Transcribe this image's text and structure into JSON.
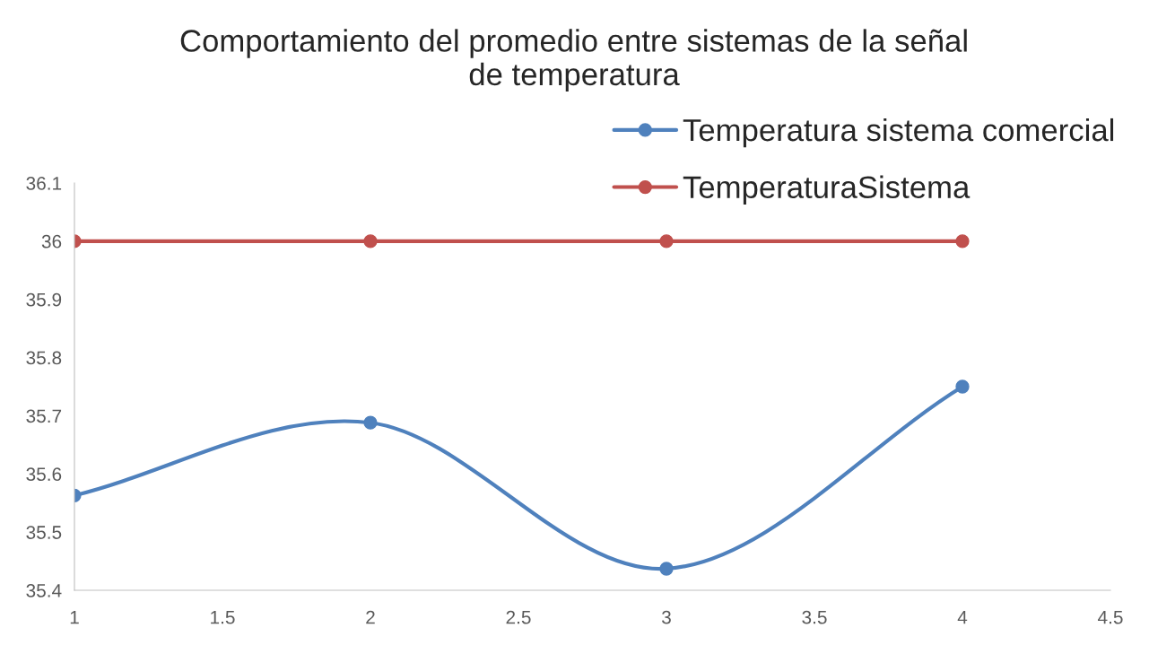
{
  "chart_data": {
    "type": "line",
    "title": "Comportamiento del promedio entre sistemas de la señal de temperatura",
    "x": [
      1,
      2,
      3,
      4
    ],
    "series": [
      {
        "name": "Temperatura sistema comercial",
        "color": "#4f81bd",
        "values": [
          35.563,
          35.688,
          35.437,
          35.75
        ]
      },
      {
        "name": "TemperaturaSistema",
        "color": "#c0504d",
        "values": [
          36,
          36,
          36,
          36
        ]
      }
    ],
    "xlim": [
      1,
      4.5
    ],
    "xticks": [
      1,
      1.5,
      2,
      2.5,
      3,
      3.5,
      4,
      4.5
    ],
    "ylim": [
      35.4,
      36.1
    ],
    "yticks": [
      35.4,
      35.5,
      35.6,
      35.7,
      35.8,
      35.9,
      36,
      36.1
    ],
    "grid": false,
    "legend": "top right",
    "marker": "circle",
    "line_style": "solid"
  }
}
